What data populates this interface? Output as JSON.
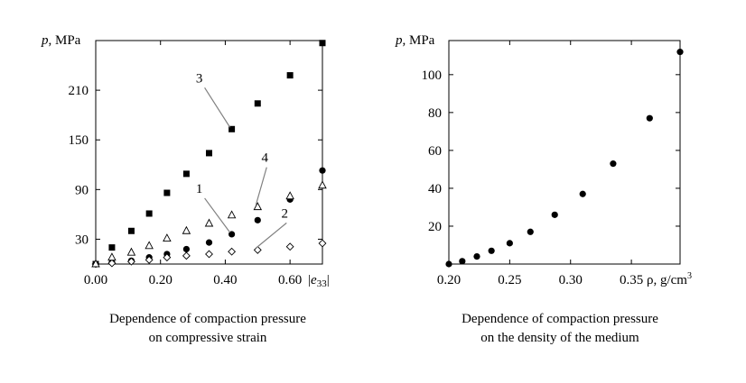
{
  "chart_data": [
    {
      "type": "scatter",
      "title": "",
      "xlabel": "|e33|",
      "ylabel": "p, MPa",
      "xlim": [
        0,
        0.7
      ],
      "ylim": [
        0,
        270
      ],
      "x_ticks": [
        0.0,
        0.2,
        0.4,
        0.6
      ],
      "x_tick_labels": [
        "0.00",
        "0.20",
        "0.40",
        "0.60"
      ],
      "y_ticks": [
        30,
        90,
        150,
        210
      ],
      "y_tick_labels": [
        "30",
        "90",
        "150",
        "210"
      ],
      "series": [
        {
          "name": "1",
          "marker": "filled-circle",
          "x": [
            0.0,
            0.05,
            0.11,
            0.165,
            0.22,
            0.28,
            0.35,
            0.42,
            0.5,
            0.6,
            0.7
          ],
          "y": [
            0,
            2,
            4,
            8,
            12,
            18,
            26,
            36,
            53,
            78,
            113
          ]
        },
        {
          "name": "2",
          "marker": "open-diamond",
          "x": [
            0.0,
            0.05,
            0.11,
            0.165,
            0.22,
            0.28,
            0.35,
            0.42,
            0.5,
            0.6,
            0.7
          ],
          "y": [
            0,
            1,
            3,
            5,
            8,
            10,
            12,
            15,
            17,
            21,
            25
          ]
        },
        {
          "name": "3",
          "marker": "filled-square",
          "x": [
            0.0,
            0.05,
            0.11,
            0.165,
            0.22,
            0.28,
            0.35,
            0.42,
            0.5,
            0.6,
            0.7
          ],
          "y": [
            0,
            20,
            40,
            61,
            86,
            109,
            134,
            163,
            194,
            228,
            267
          ]
        },
        {
          "name": "4",
          "marker": "open-triangle",
          "x": [
            0.0,
            0.05,
            0.11,
            0.165,
            0.22,
            0.28,
            0.35,
            0.42,
            0.5,
            0.6,
            0.7
          ],
          "y": [
            0,
            8,
            14,
            22,
            31,
            40,
            49,
            59,
            69,
            82,
            95
          ]
        }
      ],
      "annotations": [
        {
          "text": "3",
          "point": [
            0.42,
            163
          ]
        },
        {
          "text": "4",
          "point": [
            0.5,
            69
          ]
        },
        {
          "text": "1",
          "point": [
            0.42,
            36
          ]
        },
        {
          "text": "2",
          "point": [
            0.5,
            17
          ]
        }
      ],
      "caption": [
        "Dependence of compaction pressure",
        "on compressive strain"
      ]
    },
    {
      "type": "scatter",
      "title": "",
      "xlabel": "ρ, g/cm³",
      "ylabel": "p, MPa",
      "xlim": [
        0.2,
        0.39
      ],
      "ylim": [
        0,
        118
      ],
      "x_ticks": [
        0.2,
        0.25,
        0.3,
        0.35
      ],
      "x_tick_labels": [
        "0.20",
        "0.25",
        "0.30",
        "0.35"
      ],
      "y_ticks": [
        20,
        40,
        60,
        80,
        100
      ],
      "y_tick_labels": [
        "20",
        "40",
        "60",
        "80",
        "100"
      ],
      "series": [
        {
          "name": "data",
          "marker": "filled-circle",
          "x": [
            0.2,
            0.211,
            0.223,
            0.235,
            0.25,
            0.267,
            0.287,
            0.31,
            0.335,
            0.365,
            0.39
          ],
          "y": [
            0,
            1.5,
            4,
            7,
            11,
            17,
            26,
            37,
            53,
            77,
            112
          ]
        }
      ],
      "caption": [
        "Dependence of compaction pressure",
        "on the density of the medium"
      ]
    }
  ]
}
